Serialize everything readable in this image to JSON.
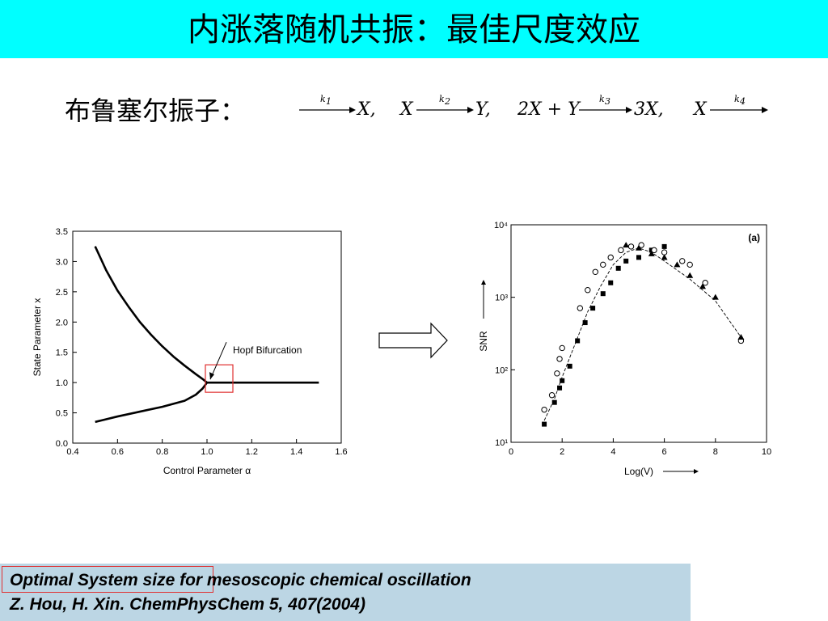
{
  "slide": {
    "title": "内涨落随机共振：最佳尺度效应",
    "subtitle": "布鲁塞尔振子：",
    "colors": {
      "title_bar": "#00ffff",
      "reference_box": "#bcd6e4",
      "highlight": "#e03030"
    }
  },
  "reactions": [
    {
      "left": "",
      "rate": "1",
      "right": "X,"
    },
    {
      "left": "X",
      "rate": "2",
      "right": "Y,"
    },
    {
      "left": "2X + Y",
      "rate": "3",
      "right": "3X,"
    },
    {
      "left": "X",
      "rate": "4",
      "right": ""
    }
  ],
  "reference": {
    "highlight": "Optimal System size",
    "line1_rest": " for mesoscopic chemical oscillation",
    "line2": "Z. Hou, H. Xin. ChemPhysChem 5, 407(2004)"
  },
  "chart_data": [
    {
      "type": "line",
      "xlabel": "Control Parameter α",
      "ylabel": "State Parameter x",
      "xlim": [
        0.4,
        1.6
      ],
      "ylim": [
        0.0,
        3.5
      ],
      "xticks": [
        "0.4",
        "0.6",
        "0.8",
        "1.0",
        "1.2",
        "1.4",
        "1.6"
      ],
      "yticks": [
        "0.0",
        "0.5",
        "1.0",
        "1.5",
        "2.0",
        "2.5",
        "3.0",
        "3.5"
      ],
      "annotation": "Hopf Bifurcation",
      "series": [
        {
          "x": [
            0.5,
            0.55,
            0.6,
            0.65,
            0.7,
            0.75,
            0.8,
            0.85,
            0.9,
            0.95,
            0.98,
            1.0
          ],
          "y": [
            3.25,
            2.85,
            2.52,
            2.25,
            2.0,
            1.79,
            1.6,
            1.43,
            1.28,
            1.14,
            1.06,
            1.0
          ]
        },
        {
          "x": [
            0.5,
            0.6,
            0.7,
            0.8,
            0.9,
            0.95,
            0.98,
            1.0
          ],
          "y": [
            0.35,
            0.44,
            0.52,
            0.6,
            0.7,
            0.8,
            0.9,
            1.0
          ]
        },
        {
          "x": [
            1.0,
            1.5
          ],
          "y": [
            1.0,
            1.0
          ]
        }
      ]
    },
    {
      "type": "scatter",
      "panel_label": "(a)",
      "xlabel": "Log(V)",
      "ylabel": "SNR",
      "xlim": [
        0,
        10
      ],
      "ylim": [
        1,
        4
      ],
      "yscale": "log",
      "xticks": [
        "0",
        "2",
        "4",
        "6",
        "8",
        "10"
      ],
      "yticks": [
        "10¹",
        "10²",
        "10³",
        "10⁴"
      ],
      "series": [
        {
          "marker": "filled-square",
          "x": [
            1.3,
            1.7,
            1.9,
            2.0,
            2.3,
            2.6,
            2.9,
            3.2,
            3.6,
            3.9,
            4.2,
            4.5,
            5.0,
            5.5,
            6.0
          ],
          "y": [
            1.25,
            1.55,
            1.75,
            1.85,
            2.05,
            2.4,
            2.65,
            2.85,
            3.05,
            3.2,
            3.4,
            3.5,
            3.55,
            3.65,
            3.7
          ]
        },
        {
          "marker": "open-circle",
          "x": [
            1.3,
            1.6,
            1.8,
            1.9,
            2.0,
            2.7,
            3.0,
            3.3,
            3.6,
            3.9,
            4.3,
            4.7,
            5.1,
            5.6,
            6.0,
            6.7,
            7.0,
            7.6,
            9.0
          ],
          "y": [
            1.45,
            1.65,
            1.95,
            2.15,
            2.3,
            2.85,
            3.1,
            3.35,
            3.45,
            3.55,
            3.65,
            3.7,
            3.72,
            3.65,
            3.62,
            3.5,
            3.45,
            3.2,
            2.4
          ]
        },
        {
          "marker": "filled-triangle",
          "x": [
            4.5,
            5.0,
            5.5,
            6.0,
            6.5,
            7.0,
            7.5,
            8.0,
            9.0
          ],
          "y": [
            3.72,
            3.68,
            3.6,
            3.55,
            3.45,
            3.3,
            3.15,
            3.0,
            2.45
          ]
        }
      ],
      "trend": {
        "x": [
          1.3,
          1.7,
          2.0,
          2.5,
          3.0,
          3.5,
          4.0,
          4.5,
          5.0,
          5.5,
          6.0,
          7.0,
          8.0,
          9.0
        ],
        "y": [
          1.3,
          1.6,
          1.9,
          2.35,
          2.8,
          3.15,
          3.45,
          3.62,
          3.68,
          3.62,
          3.5,
          3.25,
          2.95,
          2.45
        ]
      }
    }
  ]
}
